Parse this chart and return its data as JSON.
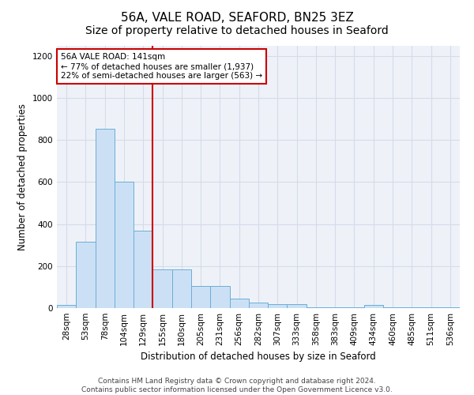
{
  "title": "56A, VALE ROAD, SEAFORD, BN25 3EZ",
  "subtitle": "Size of property relative to detached houses in Seaford",
  "xlabel": "Distribution of detached houses by size in Seaford",
  "ylabel": "Number of detached properties",
  "categories": [
    "28sqm",
    "53sqm",
    "78sqm",
    "104sqm",
    "129sqm",
    "155sqm",
    "180sqm",
    "205sqm",
    "231sqm",
    "256sqm",
    "282sqm",
    "307sqm",
    "333sqm",
    "358sqm",
    "383sqm",
    "409sqm",
    "434sqm",
    "460sqm",
    "485sqm",
    "511sqm",
    "536sqm"
  ],
  "values": [
    15,
    315,
    855,
    600,
    370,
    185,
    185,
    105,
    105,
    45,
    25,
    20,
    20,
    5,
    5,
    5,
    15,
    5,
    5,
    5,
    5
  ],
  "bar_color": "#cce0f5",
  "bar_edge_color": "#6aaed6",
  "grid_color": "#d4dce8",
  "background_color": "#eef2f8",
  "vline_color": "#cc0000",
  "annotation_text": "56A VALE ROAD: 141sqm\n← 77% of detached houses are smaller (1,937)\n22% of semi-detached houses are larger (563) →",
  "annotation_box_color": "#ffffff",
  "annotation_box_edge": "#cc0000",
  "footer_line1": "Contains HM Land Registry data © Crown copyright and database right 2024.",
  "footer_line2": "Contains public sector information licensed under the Open Government Licence v3.0.",
  "ylim": [
    0,
    1250
  ],
  "yticks": [
    0,
    200,
    400,
    600,
    800,
    1000,
    1200
  ],
  "title_fontsize": 11,
  "subtitle_fontsize": 10,
  "axis_label_fontsize": 8.5,
  "tick_fontsize": 7.5,
  "annotation_fontsize": 7.5,
  "footer_fontsize": 6.5
}
